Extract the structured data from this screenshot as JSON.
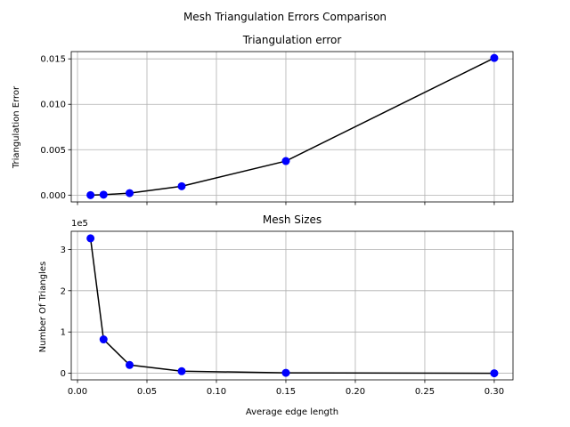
{
  "chart_data": {
    "suptitle": "Mesh Triangulation Errors Comparison",
    "shared_x": {
      "xlabel": "Average edge length",
      "xlim": [
        -0.0045,
        0.3135
      ],
      "xticks": [
        0.0,
        0.05,
        0.1,
        0.15,
        0.2,
        0.25,
        0.3
      ],
      "xtick_labels": [
        "0.00",
        "0.05",
        "0.10",
        "0.15",
        "0.20",
        "0.25",
        "0.30"
      ]
    },
    "charts": [
      {
        "type": "line",
        "title": "Triangulation error",
        "ylabel": "Triangulation Error",
        "ylim": [
          -0.00075,
          0.0158
        ],
        "yticks": [
          0.0,
          0.005,
          0.01,
          0.015
        ],
        "ytick_labels": [
          "0.000",
          "0.005",
          "0.010",
          "0.015"
        ],
        "grid": true,
        "line_color": "#000000",
        "marker_color": "#0000ff",
        "series": [
          {
            "x": [
              0.009375,
              0.01875,
              0.0375,
              0.075,
              0.15,
              0.3
            ],
            "y": [
              0.0,
              5e-05,
              0.00022,
              0.00098,
              0.00375,
              0.0151
            ]
          }
        ]
      },
      {
        "type": "line",
        "title": "Mesh Sizes",
        "ylabel": "Number Of Triangles",
        "offset_text": "1e5",
        "ylim": [
          -0.16,
          3.44
        ],
        "yticks": [
          0,
          1,
          2,
          3
        ],
        "ytick_labels": [
          "0",
          "1",
          "2",
          "3"
        ],
        "grid": true,
        "line_color": "#000000",
        "marker_color": "#0000ff",
        "series": [
          {
            "x": [
              0.009375,
              0.01875,
              0.0375,
              0.075,
              0.15,
              0.3
            ],
            "y": [
              3.27,
              0.82,
              0.2,
              0.05,
              0.01,
              0.0
            ]
          }
        ]
      }
    ]
  }
}
